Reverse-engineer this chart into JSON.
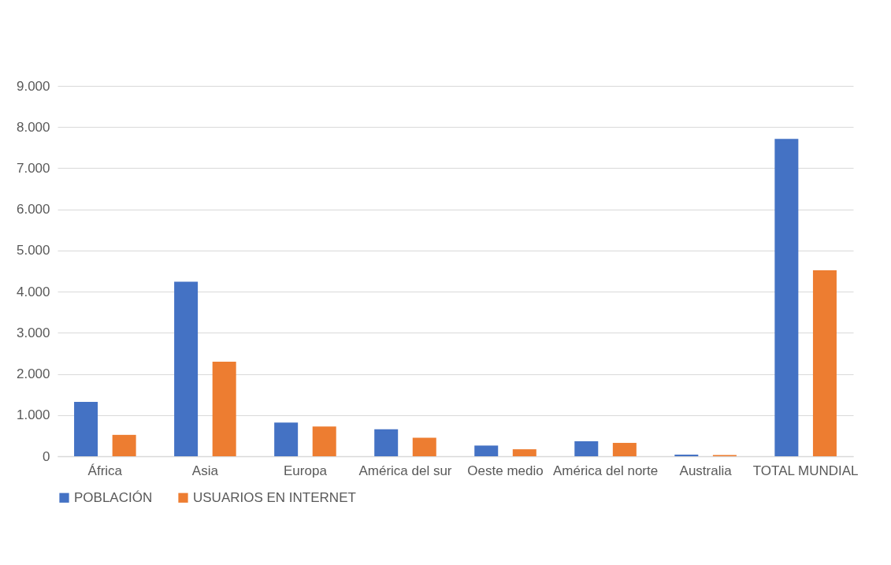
{
  "chart_data": {
    "type": "bar",
    "categories": [
      "África",
      "Asia",
      "Europa",
      "América del sur",
      "Oeste medio",
      "América del norte",
      "Australia",
      "TOTAL MUNDIAL"
    ],
    "series": [
      {
        "name": "POBLACIÓN",
        "color": "#4472c4",
        "values": [
          1320,
          4240,
          820,
          655,
          260,
          365,
          40,
          7710
        ]
      },
      {
        "name": "USUARIOS EN INTERNET",
        "color": "#ed7d31",
        "values": [
          520,
          2300,
          725,
          450,
          170,
          325,
          30,
          4520
        ]
      }
    ],
    "ylim": [
      0,
      9000
    ],
    "yticks": [
      0,
      {
        "value": 1000,
        "label": "1.000"
      },
      {
        "value": 2000,
        "label": "2.000"
      },
      {
        "value": 3000,
        "label": "3.000"
      },
      {
        "value": 4000,
        "label": "4.000"
      },
      {
        "value": 5000,
        "label": "5.000"
      },
      {
        "value": 6000,
        "label": "6.000"
      },
      {
        "value": 7000,
        "label": "7.000"
      },
      {
        "value": 8000,
        "label": "8.000"
      },
      {
        "value": 9000,
        "label": "9.000"
      }
    ],
    "grid": "y",
    "legend": "bottom"
  }
}
